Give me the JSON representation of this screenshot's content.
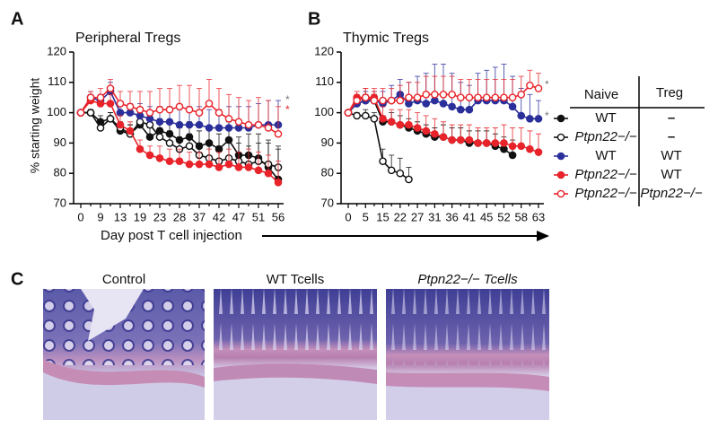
{
  "panels": [
    "A",
    "B",
    "C"
  ],
  "y_label": "% starting weight",
  "x_label": "Day post T cell injection",
  "legend": {
    "headers": [
      "Naive",
      "Treg"
    ],
    "rows": [
      {
        "naive": "WT",
        "treg": "–",
        "color": "#111111",
        "filled": true
      },
      {
        "naive": "Ptpn22−/−",
        "treg": "–",
        "color": "#111111",
        "filled": false
      },
      {
        "naive": "WT",
        "treg": "WT",
        "color": "#2b2f9a",
        "filled": true
      },
      {
        "naive": "Ptpn22−/−",
        "treg": "WT",
        "color": "#e8232a",
        "filled": true
      },
      {
        "naive": "Ptpn22−/−",
        "treg": "Ptpn22−/−",
        "color": "#e8232a",
        "filled": false
      }
    ]
  },
  "image_captions": [
    "Control",
    "WT Tcells",
    "Ptpn22−/− Tcells"
  ],
  "chart_data": [
    {
      "type": "line",
      "title": "Peripheral Tregs",
      "categories": [
        "0",
        null,
        "9",
        null,
        "13",
        null,
        "19",
        null,
        "23",
        null,
        "28",
        null,
        "37",
        null,
        "42",
        null,
        "47",
        null,
        "51",
        null,
        "56"
      ],
      "ylim": [
        70,
        120
      ],
      "yticks": [
        70,
        80,
        90,
        100,
        110,
        120
      ],
      "annotations": [
        "*",
        "*"
      ],
      "series": [
        {
          "values": [
            100,
            100,
            97,
            98,
            94,
            93,
            96,
            92,
            94,
            93,
            91,
            92,
            89,
            90,
            88,
            91,
            86,
            86,
            85,
            82,
            78
          ],
          "errors": [
            0,
            1,
            2,
            2,
            2,
            3,
            3,
            3,
            4,
            4,
            4,
            5,
            5,
            5,
            5,
            6,
            6,
            7,
            8,
            9,
            10
          ]
        },
        {
          "values": [
            100,
            100,
            95,
            98,
            95,
            93,
            97,
            96,
            92,
            90,
            88,
            89,
            86,
            85,
            84,
            85,
            84,
            83,
            84,
            83,
            82
          ],
          "errors": [
            0,
            1,
            2,
            2,
            2,
            3,
            3,
            3,
            3,
            4,
            4,
            4,
            4,
            5,
            5,
            5,
            6,
            6,
            6,
            7,
            7
          ]
        },
        {
          "values": [
            100,
            105,
            104,
            107,
            100,
            100,
            99,
            98,
            97,
            97,
            96,
            96,
            96,
            95,
            95,
            95,
            95,
            95,
            96,
            96,
            96
          ],
          "errors": [
            0,
            2,
            2,
            3,
            3,
            3,
            4,
            4,
            5,
            5,
            5,
            6,
            6,
            6,
            6,
            7,
            7,
            7,
            7,
            8,
            8
          ]
        },
        {
          "values": [
            100,
            104,
            103,
            103,
            96,
            94,
            88,
            86,
            85,
            84,
            84,
            83,
            83,
            83,
            82,
            83,
            82,
            82,
            81,
            80,
            77
          ],
          "errors": [
            0,
            2,
            2,
            3,
            3,
            3,
            3,
            3,
            4,
            4,
            4,
            4,
            4,
            5,
            5,
            5,
            5,
            6,
            6,
            6,
            7
          ]
        },
        {
          "values": [
            100,
            105,
            105,
            108,
            103,
            102,
            101,
            100,
            101,
            101,
            102,
            101,
            100,
            103,
            100,
            98,
            97,
            96,
            96,
            95,
            93
          ],
          "errors": [
            0,
            2,
            3,
            3,
            4,
            5,
            6,
            7,
            7,
            7,
            7,
            8,
            8,
            8,
            8,
            8,
            8,
            8,
            9,
            9,
            9
          ]
        }
      ]
    },
    {
      "type": "line",
      "title": "Thymic Tregs",
      "categories": [
        "0",
        null,
        "5",
        null,
        "15",
        null,
        "22",
        null,
        "27",
        null,
        "31",
        null,
        "36",
        null,
        "41",
        null,
        "45",
        null,
        "52",
        null,
        "58",
        null,
        "63"
      ],
      "ylim": [
        70,
        120
      ],
      "yticks": [
        70,
        80,
        90,
        100,
        110,
        120
      ],
      "annotations": [
        "*",
        "*"
      ],
      "series": [
        {
          "values": [
            100,
            103,
            104,
            104,
            97,
            97,
            96,
            95,
            94,
            93,
            92,
            92,
            91,
            91,
            90,
            90,
            90,
            89,
            88,
            86,
            null,
            null,
            null
          ],
          "errors": [
            0,
            1,
            2,
            2,
            2,
            3,
            3,
            3,
            3,
            3,
            3,
            4,
            4,
            4,
            4,
            4,
            4,
            4,
            4,
            5,
            null,
            null,
            null
          ]
        },
        {
          "values": [
            100,
            99,
            99,
            98,
            84,
            81,
            80,
            78,
            null,
            null,
            null,
            null,
            null,
            null,
            null,
            null,
            null,
            null,
            null,
            null,
            null,
            null,
            null
          ],
          "errors": [
            0,
            1,
            2,
            2,
            4,
            5,
            5,
            4,
            null,
            null,
            null,
            null,
            null,
            null,
            null,
            null,
            null,
            null,
            null,
            null,
            null,
            null,
            null
          ]
        },
        {
          "values": [
            100,
            103,
            104,
            104,
            103,
            104,
            106,
            103,
            104,
            103,
            104,
            103,
            102,
            101,
            101,
            104,
            104,
            104,
            104,
            102,
            99,
            98,
            98
          ],
          "errors": [
            0,
            2,
            3,
            3,
            4,
            5,
            5,
            7,
            8,
            10,
            12,
            13,
            11,
            9,
            8,
            9,
            10,
            11,
            12,
            10,
            9,
            8,
            6
          ]
        },
        {
          "values": [
            100,
            105,
            105,
            105,
            98,
            97,
            96,
            96,
            95,
            94,
            93,
            92,
            91,
            91,
            91,
            90,
            90,
            90,
            90,
            89,
            89,
            88,
            87
          ],
          "errors": [
            0,
            2,
            3,
            3,
            4,
            4,
            5,
            5,
            5,
            5,
            5,
            5,
            5,
            5,
            5,
            5,
            5,
            5,
            6,
            6,
            6,
            6,
            6
          ]
        },
        {
          "values": [
            100,
            104,
            105,
            104,
            104,
            104,
            104,
            105,
            105,
            106,
            106,
            106,
            106,
            105,
            105,
            105,
            105,
            105,
            105,
            105,
            106,
            109,
            108
          ],
          "errors": [
            0,
            2,
            3,
            3,
            4,
            4,
            5,
            5,
            5,
            6,
            6,
            6,
            6,
            6,
            6,
            6,
            6,
            6,
            6,
            6,
            6,
            5,
            5
          ]
        }
      ]
    }
  ]
}
